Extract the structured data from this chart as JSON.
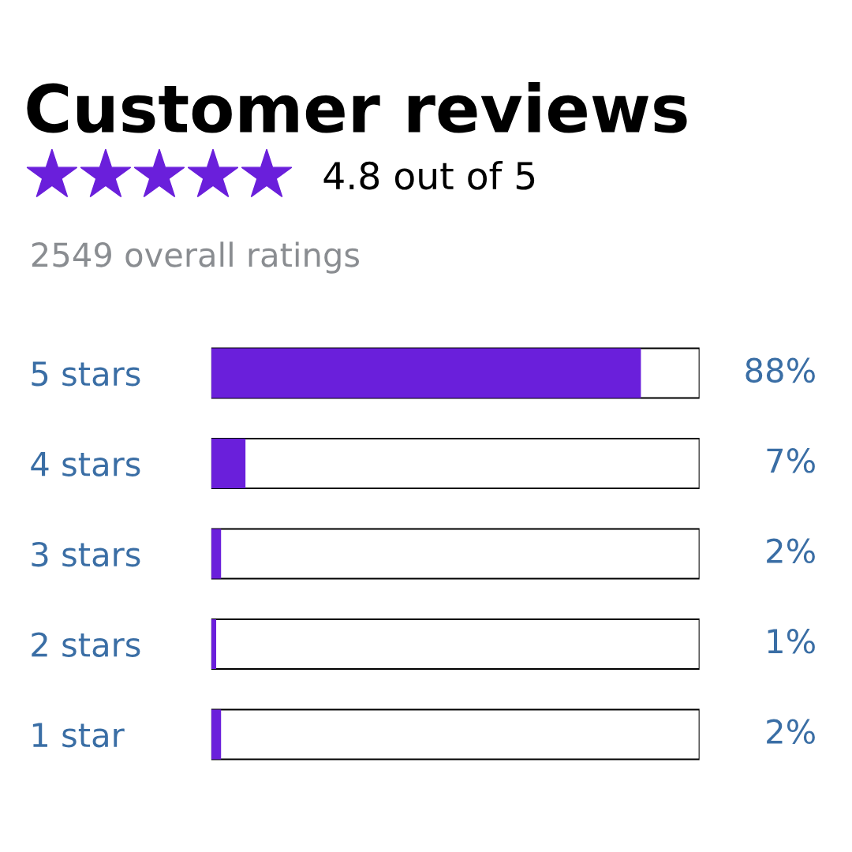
{
  "chart_data": {
    "type": "bar",
    "orientation": "horizontal",
    "title": "Customer reviews",
    "subtitle": "4.8 out of 5",
    "annotations": [
      "2549 overall ratings"
    ],
    "categories": [
      "5 stars",
      "4 stars",
      "3 stars",
      "2 stars",
      "1 star"
    ],
    "values": [
      88,
      7,
      2,
      1,
      2
    ],
    "value_labels": [
      "88%",
      "7%",
      "2%",
      "1%",
      "2%"
    ],
    "color": "#6a1fdb",
    "xlim": [
      0,
      100
    ],
    "tick_labels": "y",
    "grid": false,
    "legend": false
  }
}
